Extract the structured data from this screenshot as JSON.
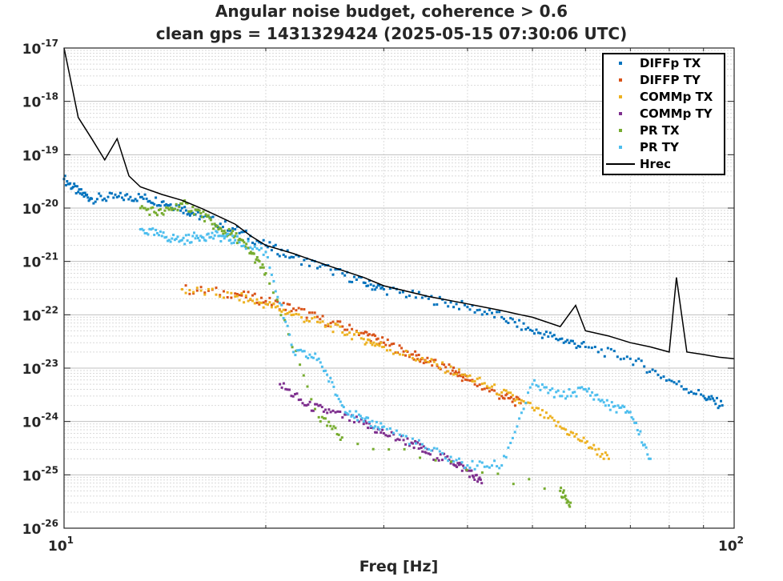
{
  "chart_data": {
    "type": "scatter",
    "title": [
      "Angular noise budget, coherence > 0.6",
      "clean gps = 1431329424 (2025-05-15 07:30:06 UTC)"
    ],
    "xlabel": "Freq [Hz]",
    "ylabel": "",
    "xscale": "log",
    "yscale": "log",
    "xlim": [
      10,
      100
    ],
    "ylim": [
      1e-26,
      1e-17
    ],
    "grid": true,
    "legend_position": "top-right",
    "x_ticks": [
      {
        "value": 10,
        "base": "10",
        "exp": "1"
      },
      {
        "value": 100,
        "base": "10",
        "exp": "2"
      }
    ],
    "y_ticks": [
      {
        "value": -26,
        "base": "10",
        "exp": "-26"
      },
      {
        "value": -25,
        "base": "10",
        "exp": "-25"
      },
      {
        "value": -24,
        "base": "10",
        "exp": "-24"
      },
      {
        "value": -23,
        "base": "10",
        "exp": "-23"
      },
      {
        "value": -22,
        "base": "10",
        "exp": "-22"
      },
      {
        "value": -21,
        "base": "10",
        "exp": "-21"
      },
      {
        "value": -20,
        "base": "10",
        "exp": "-20"
      },
      {
        "value": -19,
        "base": "10",
        "exp": "-19"
      },
      {
        "value": -18,
        "base": "10",
        "exp": "-18"
      },
      {
        "value": -17,
        "base": "10",
        "exp": "-17"
      }
    ],
    "series": [
      {
        "name": "DIFFp TX",
        "color": "#0072BD",
        "marker": "dot",
        "x": [
          10,
          10.5,
          11,
          12,
          13,
          14,
          15,
          16,
          18,
          20,
          22,
          25,
          28,
          30,
          35,
          40,
          45,
          50,
          55,
          60,
          70,
          80,
          90,
          96
        ],
        "y": [
          3.5e-20,
          2e-20,
          1.5e-20,
          1.6e-20,
          1.6e-20,
          1.3e-20,
          1e-20,
          7e-21,
          4e-21,
          2e-21,
          1.2e-21,
          7e-22,
          4e-22,
          3e-22,
          2e-22,
          1.4e-22,
          9e-23,
          5e-23,
          3.5e-23,
          2.5e-23,
          1.5e-23,
          6e-24,
          3e-24,
          2e-24
        ]
      },
      {
        "name": "DIFFP TY",
        "color": "#D95319",
        "marker": "dot",
        "x": [
          15,
          18,
          20,
          22,
          25,
          28,
          30,
          33,
          35,
          38,
          40,
          45,
          48
        ],
        "y": [
          3e-22,
          2.5e-22,
          1.8e-22,
          1.3e-22,
          7e-23,
          4.5e-23,
          3e-23,
          1.8e-23,
          1.3e-23,
          9e-24,
          6e-24,
          3e-24,
          2.2e-24
        ]
      },
      {
        "name": "COMMp TX",
        "color": "#EDB120",
        "marker": "dot",
        "x": [
          15,
          18,
          20,
          22,
          25,
          28,
          30,
          35,
          40,
          45,
          50,
          55,
          60,
          65
        ],
        "y": [
          3e-22,
          2.2e-22,
          1.6e-22,
          1e-22,
          6e-23,
          3.5e-23,
          2.5e-23,
          1.3e-23,
          7e-24,
          3.5e-24,
          1.8e-24,
          8e-25,
          4e-25,
          2e-25
        ]
      },
      {
        "name": "COMMp TY",
        "color": "#7E2F8E",
        "marker": "dot",
        "x": [
          21,
          23,
          25,
          28,
          30,
          33,
          35,
          38,
          40,
          42
        ],
        "y": [
          5e-24,
          2e-24,
          1.5e-24,
          9e-25,
          6e-25,
          4e-25,
          2.5e-25,
          1.8e-25,
          1.2e-25,
          7e-26
        ]
      },
      {
        "name": "PR TX",
        "color": "#77AC30",
        "marker": "dot",
        "x": [
          13,
          14,
          15,
          16,
          17,
          18,
          19,
          20,
          24,
          26,
          55,
          57
        ],
        "y": [
          1e-20,
          8e-21,
          1.2e-20,
          8e-21,
          4e-21,
          3e-21,
          1.5e-21,
          6e-22,
          1.2e-24,
          5e-25,
          5e-26,
          3e-26
        ]
      },
      {
        "name": "PR TY",
        "color": "#4DBEEE",
        "marker": "dot",
        "x": [
          13,
          14,
          15,
          16,
          17,
          18,
          20,
          22,
          24,
          26,
          28,
          30,
          35,
          40,
          45,
          50,
          55,
          60,
          65,
          70,
          75
        ],
        "y": [
          4e-21,
          3e-21,
          2.5e-21,
          3e-21,
          3e-21,
          2.5e-21,
          1.5e-21,
          2e-23,
          1.5e-23,
          2e-24,
          1e-24,
          8e-25,
          3e-25,
          1.5e-25,
          1.5e-25,
          5e-24,
          3e-24,
          4e-24,
          2e-24,
          1.5e-24,
          2e-25
        ]
      },
      {
        "name": "Hrec",
        "color": "#000000",
        "marker": "line",
        "x": [
          10,
          10.2,
          10.5,
          11,
          11.5,
          12,
          12.5,
          13,
          14,
          15,
          16,
          17,
          18,
          19,
          20,
          22,
          25,
          28,
          30,
          35,
          40,
          45,
          48,
          50,
          55,
          58,
          60,
          65,
          70,
          75,
          80,
          82,
          85,
          90,
          95,
          100
        ],
        "y": [
          1e-17,
          3e-18,
          5e-19,
          2e-19,
          8e-20,
          2e-19,
          4e-20,
          2.5e-20,
          1.8e-20,
          1.4e-20,
          1e-20,
          7e-21,
          5e-21,
          3e-21,
          2e-21,
          1.4e-21,
          8e-22,
          5e-22,
          3.5e-22,
          2.2e-22,
          1.6e-22,
          1.2e-22,
          1e-22,
          9e-23,
          6e-23,
          1.5e-22,
          5e-23,
          4e-23,
          3e-23,
          2.5e-23,
          2e-23,
          5e-22,
          2e-23,
          1.8e-23,
          1.6e-23,
          1.5e-23
        ]
      }
    ]
  }
}
